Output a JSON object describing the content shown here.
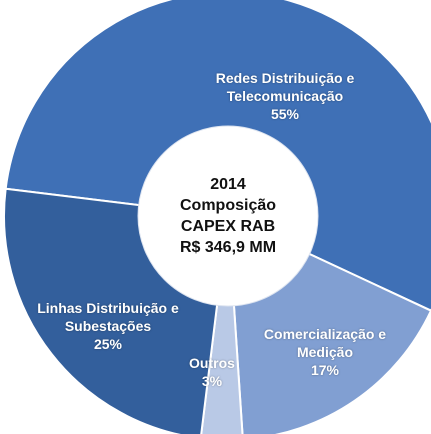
{
  "chart_data": {
    "type": "pie",
    "center_text": [
      "2014",
      "Composição",
      "CAPEX RAB",
      "R$ 346,9 MM"
    ],
    "categories": [
      "Redes Distribuição e Telecomunicação",
      "Comercialização e Medição",
      "Outros",
      "Linhas Distribuição e Subestações"
    ],
    "values": [
      55,
      17,
      3,
      25
    ],
    "value_labels": [
      "55%",
      "17%",
      "3%",
      "25%"
    ],
    "colors": [
      "#3f70b6",
      "#819fd2",
      "#b9c9e6",
      "#335f9c"
    ]
  }
}
